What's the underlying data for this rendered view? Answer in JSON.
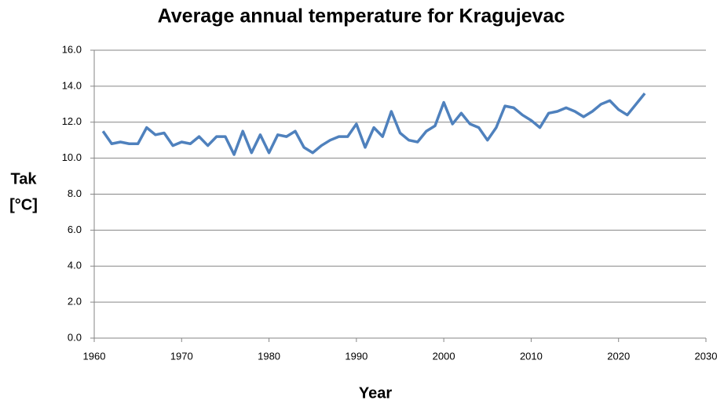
{
  "chart_data": {
    "type": "line",
    "title": "Average annual temperature for Kragujevac",
    "x_label": "Year",
    "y_label": [
      "Tak",
      "[°C]"
    ],
    "x": [
      1961,
      1962,
      1963,
      1964,
      1965,
      1966,
      1967,
      1968,
      1969,
      1970,
      1971,
      1972,
      1973,
      1974,
      1975,
      1976,
      1977,
      1978,
      1979,
      1980,
      1981,
      1982,
      1983,
      1984,
      1985,
      1986,
      1987,
      1988,
      1989,
      1990,
      1991,
      1992,
      1993,
      1994,
      1995,
      1996,
      1997,
      1998,
      1999,
      2000,
      2001,
      2002,
      2003,
      2004,
      2005,
      2006,
      2007,
      2008,
      2009,
      2010,
      2011,
      2012,
      2013,
      2014,
      2015,
      2016,
      2017,
      2018,
      2019,
      2020,
      2021,
      2022,
      2023
    ],
    "values": [
      11.5,
      10.8,
      10.9,
      10.8,
      10.8,
      11.7,
      11.3,
      11.4,
      10.7,
      10.9,
      10.8,
      11.2,
      10.7,
      11.2,
      11.2,
      10.2,
      11.5,
      10.3,
      11.3,
      10.3,
      11.3,
      11.2,
      11.5,
      10.6,
      10.3,
      10.7,
      11.0,
      11.2,
      11.2,
      11.9,
      10.6,
      11.7,
      11.2,
      12.6,
      11.4,
      11.0,
      10.9,
      11.5,
      11.8,
      13.1,
      11.9,
      12.5,
      11.9,
      11.7,
      11.0,
      11.7,
      12.9,
      12.8,
      12.4,
      12.1,
      11.7,
      12.5,
      12.6,
      12.8,
      12.6,
      12.3,
      12.6,
      13.0,
      13.2,
      12.7,
      12.4,
      13.0,
      13.6
    ],
    "color": "#4f81bd",
    "xlim": [
      1960,
      2030
    ],
    "xticks": [
      1960,
      1970,
      1980,
      1990,
      2000,
      2010,
      2020,
      2030
    ],
    "ylim": [
      0,
      16
    ],
    "yticks": [
      {
        "value": 0,
        "label": "0.0"
      },
      {
        "value": 2,
        "label": "2.0"
      },
      {
        "value": 4,
        "label": "4.0"
      },
      {
        "value": 6,
        "label": "6.0"
      },
      {
        "value": 8,
        "label": "8.0"
      },
      {
        "value": 10,
        "label": "10.0"
      },
      {
        "value": 12,
        "label": "12.0"
      },
      {
        "value": 14,
        "label": "14.0"
      },
      {
        "value": 16,
        "label": "16.0"
      }
    ],
    "grid": true
  }
}
